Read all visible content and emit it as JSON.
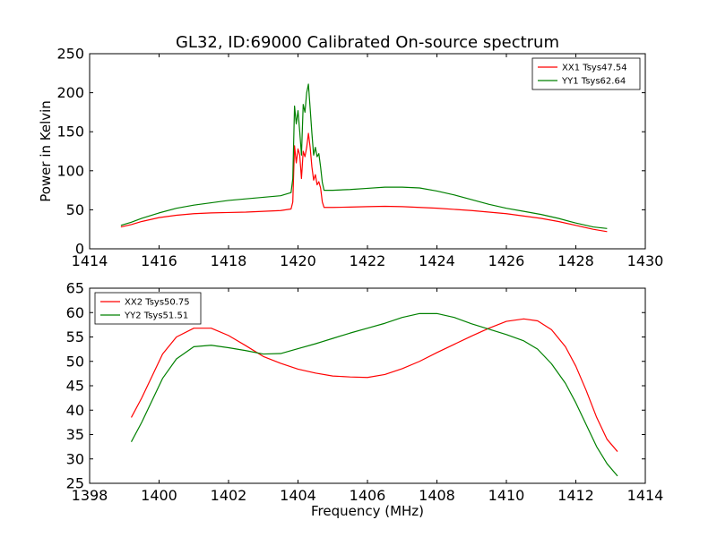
{
  "chart_data": [
    {
      "type": "line",
      "title": "GL32, ID:69000 Calibrated On-source spectrum",
      "xlabel": "",
      "ylabel": "Power in Kelvin",
      "xlim": [
        1414,
        1430
      ],
      "ylim": [
        0,
        250
      ],
      "xticks": [
        "1414",
        "1416",
        "1418",
        "1420",
        "1422",
        "1424",
        "1426",
        "1428",
        "1430"
      ],
      "yticks": [
        "0",
        "50",
        "100",
        "150",
        "200",
        "250"
      ],
      "grid": false,
      "legend_position": "top-right",
      "series": [
        {
          "name": "XX1 Tsys47.54",
          "color": "#ff0000",
          "x": [
            1414.9,
            1415.2,
            1415.5,
            1416.0,
            1416.5,
            1417.0,
            1417.5,
            1418.0,
            1418.5,
            1419.0,
            1419.5,
            1419.8,
            1419.85,
            1419.9,
            1419.95,
            1420.0,
            1420.05,
            1420.1,
            1420.15,
            1420.2,
            1420.25,
            1420.3,
            1420.35,
            1420.4,
            1420.45,
            1420.5,
            1420.55,
            1420.6,
            1420.65,
            1420.7,
            1420.75,
            1421.0,
            1421.5,
            1422.0,
            1422.5,
            1423.0,
            1423.5,
            1424.0,
            1424.5,
            1425.0,
            1425.5,
            1426.0,
            1426.5,
            1427.0,
            1427.5,
            1428.0,
            1428.5,
            1428.9
          ],
          "y": [
            28,
            31,
            35,
            40,
            43,
            45,
            46,
            46.5,
            47,
            48,
            49,
            51,
            60,
            132,
            110,
            128,
            120,
            90,
            125,
            118,
            130,
            148,
            130,
            105,
            88,
            95,
            82,
            86,
            78,
            60,
            53,
            53,
            53.5,
            54,
            54.5,
            54,
            53,
            52,
            50.5,
            49,
            47,
            45,
            42,
            39,
            35,
            30,
            25,
            22
          ]
        },
        {
          "name": "YY1 Tsys62.64",
          "color": "#008000",
          "x": [
            1414.9,
            1415.2,
            1415.5,
            1416.0,
            1416.5,
            1417.0,
            1417.5,
            1418.0,
            1418.5,
            1419.0,
            1419.5,
            1419.8,
            1419.85,
            1419.9,
            1419.95,
            1420.0,
            1420.05,
            1420.1,
            1420.15,
            1420.2,
            1420.25,
            1420.3,
            1420.35,
            1420.4,
            1420.45,
            1420.5,
            1420.55,
            1420.6,
            1420.65,
            1420.7,
            1420.75,
            1421.0,
            1421.5,
            1422.0,
            1422.5,
            1423.0,
            1423.5,
            1424.0,
            1424.5,
            1425.0,
            1425.5,
            1426.0,
            1426.5,
            1427.0,
            1427.5,
            1428.0,
            1428.5,
            1428.9
          ],
          "y": [
            30,
            34,
            39,
            46,
            52,
            56,
            59,
            62,
            64,
            66,
            68,
            72,
            90,
            183,
            160,
            177,
            150,
            120,
            185,
            175,
            200,
            211,
            180,
            148,
            120,
            130,
            118,
            122,
            105,
            85,
            75,
            75,
            76,
            77.5,
            79,
            79,
            78,
            74,
            69,
            63,
            57,
            52,
            48,
            44,
            39,
            33,
            28,
            26
          ]
        }
      ]
    },
    {
      "type": "line",
      "title": "",
      "xlabel": "Frequency (MHz)",
      "ylabel": "",
      "xlim": [
        1398,
        1414
      ],
      "ylim": [
        25,
        65
      ],
      "xticks": [
        "1398",
        "1400",
        "1402",
        "1404",
        "1406",
        "1408",
        "1410",
        "1412",
        "1414"
      ],
      "yticks": [
        "25",
        "30",
        "35",
        "40",
        "45",
        "50",
        "55",
        "60",
        "65"
      ],
      "grid": false,
      "legend_position": "top-left",
      "series": [
        {
          "name": "XX2 Tsys50.75",
          "color": "#ff0000",
          "x": [
            1399.2,
            1399.5,
            1399.8,
            1400.1,
            1400.5,
            1401.0,
            1401.5,
            1402.0,
            1402.5,
            1403.0,
            1403.5,
            1404.0,
            1404.5,
            1405.0,
            1405.5,
            1406.0,
            1406.5,
            1407.0,
            1407.5,
            1408.0,
            1408.5,
            1409.0,
            1409.5,
            1410.0,
            1410.5,
            1410.9,
            1411.3,
            1411.7,
            1412.0,
            1412.3,
            1412.6,
            1412.9,
            1413.2
          ],
          "y": [
            38.5,
            42.5,
            47,
            51.5,
            55,
            56.8,
            56.8,
            55.3,
            53.2,
            51,
            49.6,
            48.4,
            47.6,
            47,
            46.8,
            46.7,
            47.3,
            48.5,
            50,
            51.8,
            53.5,
            55.2,
            56.8,
            58.2,
            58.7,
            58.3,
            56.5,
            53,
            49,
            44,
            38.5,
            34,
            31.5
          ]
        },
        {
          "name": "YY2 Tsys51.51",
          "color": "#008000",
          "x": [
            1399.2,
            1399.5,
            1399.8,
            1400.1,
            1400.5,
            1401.0,
            1401.5,
            1402.0,
            1402.5,
            1403.0,
            1403.5,
            1404.0,
            1404.5,
            1405.0,
            1405.5,
            1406.0,
            1406.5,
            1407.0,
            1407.5,
            1408.0,
            1408.5,
            1409.0,
            1409.5,
            1410.0,
            1410.5,
            1410.9,
            1411.3,
            1411.7,
            1412.0,
            1412.3,
            1412.6,
            1412.9,
            1413.2
          ],
          "y": [
            33.5,
            37.5,
            42,
            46.5,
            50.5,
            53,
            53.3,
            52.8,
            52.2,
            51.5,
            51.6,
            52.6,
            53.6,
            54.7,
            55.8,
            56.8,
            57.8,
            59,
            59.8,
            59.8,
            59,
            57.7,
            56.6,
            55.5,
            54.2,
            52.5,
            49.5,
            45.5,
            41.5,
            37,
            32.5,
            29,
            26.5
          ]
        }
      ]
    }
  ]
}
